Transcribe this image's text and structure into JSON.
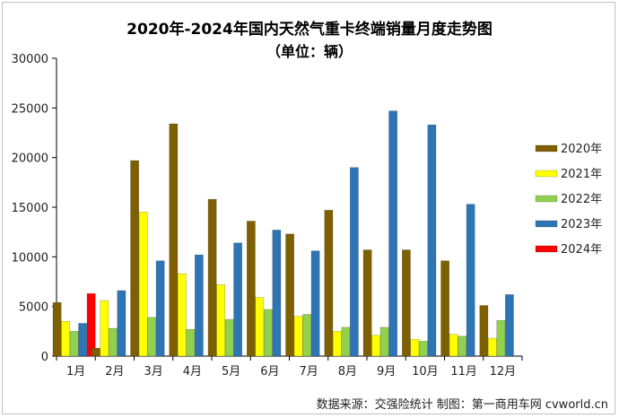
{
  "chart_data": {
    "type": "bar",
    "title": "2020年-2024年国内天然气重卡终端销量月度走势图",
    "subtitle": "（单位：辆）",
    "source": "数据来源：交强险统计   制图：第一商用车网 cvworld.cn",
    "categories": [
      "1月",
      "2月",
      "3月",
      "4月",
      "5月",
      "6月",
      "7月",
      "8月",
      "9月",
      "10月",
      "11月",
      "12月"
    ],
    "ylim": [
      0,
      30000
    ],
    "yticks": [
      0,
      5000,
      10000,
      15000,
      20000,
      25000,
      30000
    ],
    "legend_position": "right",
    "grid": false,
    "series": [
      {
        "name": "2020年",
        "color": "#7f6000",
        "values": [
          5400,
          800,
          19700,
          23400,
          15800,
          13600,
          12300,
          14700,
          10700,
          10700,
          9600,
          5100
        ]
      },
      {
        "name": "2021年",
        "color": "#ffff00",
        "values": [
          3500,
          5600,
          14500,
          8300,
          7200,
          5900,
          4000,
          2500,
          2100,
          1700,
          2200,
          1800
        ]
      },
      {
        "name": "2022年",
        "color": "#92d050",
        "values": [
          2500,
          2800,
          3900,
          2700,
          3700,
          4700,
          4200,
          2900,
          2900,
          1500,
          2000,
          3600
        ]
      },
      {
        "name": "2023年",
        "color": "#2e75b6",
        "values": [
          3300,
          6600,
          9600,
          10200,
          11400,
          12700,
          10600,
          19000,
          24700,
          23300,
          15300,
          6200
        ]
      },
      {
        "name": "2024年",
        "color": "#ff0000",
        "values": [
          6300,
          null,
          null,
          null,
          null,
          null,
          null,
          null,
          null,
          null,
          null,
          null
        ]
      }
    ]
  }
}
